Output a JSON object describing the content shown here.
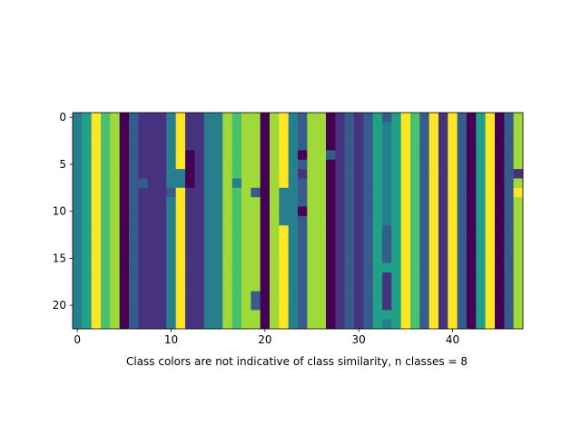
{
  "chart_data": {
    "type": "heatmap",
    "title": "",
    "xlabel": "Class colors are not indicative of class similarity, n classes = 8",
    "ylabel": "",
    "n_classes": 8,
    "n_rows": 23,
    "n_cols": 48,
    "xticks": [
      0,
      10,
      20,
      30,
      40
    ],
    "yticks": [
      0,
      5,
      10,
      15,
      20
    ],
    "colormap": "viridis",
    "class_colors": [
      "#440154",
      "#46327e",
      "#365c8d",
      "#277f8e",
      "#1fa187",
      "#4ac16d",
      "#a0da39",
      "#fde725"
    ],
    "column_base_classes": [
      3,
      4,
      7,
      5,
      6,
      0,
      2,
      1,
      1,
      1,
      3,
      7,
      1,
      1,
      3,
      3,
      6,
      5,
      6,
      6,
      0,
      6,
      7,
      3,
      2,
      6,
      6,
      0,
      1,
      2,
      1,
      2,
      4,
      3,
      4,
      7,
      5,
      2,
      7,
      1,
      7,
      2,
      0,
      4,
      7,
      0,
      2,
      6
    ],
    "overrides": [
      [
        0,
        33,
        2
      ],
      [
        4,
        12,
        0
      ],
      [
        4,
        24,
        0
      ],
      [
        4,
        27,
        2
      ],
      [
        5,
        12,
        0
      ],
      [
        6,
        11,
        3
      ],
      [
        6,
        12,
        0
      ],
      [
        6,
        24,
        1
      ],
      [
        6,
        47,
        1
      ],
      [
        7,
        7,
        2
      ],
      [
        7,
        11,
        3
      ],
      [
        7,
        12,
        0
      ],
      [
        7,
        17,
        3
      ],
      [
        8,
        10,
        2
      ],
      [
        8,
        19,
        2
      ],
      [
        8,
        22,
        3
      ],
      [
        8,
        47,
        7
      ],
      [
        9,
        10,
        3
      ],
      [
        9,
        22,
        3
      ],
      [
        10,
        10,
        3
      ],
      [
        10,
        22,
        3
      ],
      [
        10,
        24,
        0
      ],
      [
        11,
        22,
        3
      ],
      [
        12,
        33,
        2
      ],
      [
        13,
        33,
        2
      ],
      [
        14,
        33,
        2
      ],
      [
        15,
        33,
        2
      ],
      [
        16,
        33,
        4
      ],
      [
        17,
        33,
        1
      ],
      [
        18,
        33,
        1
      ],
      [
        19,
        33,
        1
      ],
      [
        19,
        19,
        2
      ],
      [
        20,
        19,
        2
      ],
      [
        20,
        33,
        1
      ],
      [
        21,
        33,
        4
      ]
    ]
  }
}
